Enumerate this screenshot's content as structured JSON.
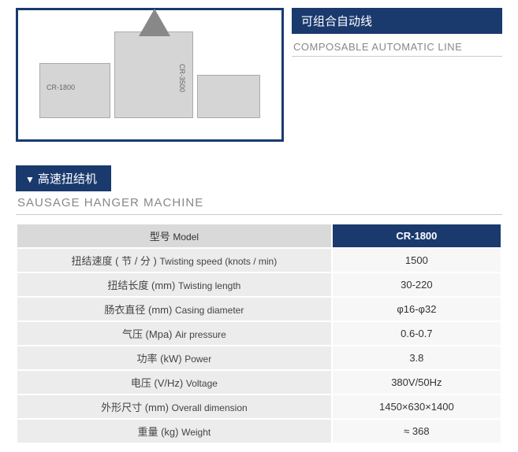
{
  "top_label": {
    "cn": "可组合自动线",
    "en": "COMPOSABLE AUTOMATIC LINE"
  },
  "section": {
    "cn": "高速扭结机",
    "en": "SAUSAGE HANGER MACHINE"
  },
  "table": {
    "header_label_cn": "型号",
    "header_label_en": "Model",
    "header_value": "CR-1800",
    "rows": [
      {
        "cn": "扭结速度 ( 节 / 分 )",
        "en": "Twisting speed (knots / min)",
        "val": "1500"
      },
      {
        "cn": "扭结长度 (mm)",
        "en": "Twisting length",
        "val": "30-220"
      },
      {
        "cn": "肠衣直径 (mm)",
        "en": "Casing diameter",
        "val": "φ16-φ32"
      },
      {
        "cn": "气压 (Mpa)",
        "en": "Air pressure",
        "val": "0.6-0.7"
      },
      {
        "cn": "功率 (kW)",
        "en": "Power",
        "val": "3.8"
      },
      {
        "cn": "电压 (V/Hz)",
        "en": "Voltage",
        "val": "380V/50Hz"
      },
      {
        "cn": "外形尺寸 (mm)",
        "en": "Overall dimension",
        "val": "1450×630×1400"
      },
      {
        "cn": "重量 (kg)",
        "en": "Weight",
        "val": "≈ 368"
      }
    ]
  },
  "colors": {
    "brand_blue": "#1a3a6e",
    "row_label_bg": "#ececec",
    "row_val_bg": "#f7f7f7",
    "header_label_bg": "#d9d9d9",
    "border": "#cccccc",
    "subtext": "#888888"
  }
}
